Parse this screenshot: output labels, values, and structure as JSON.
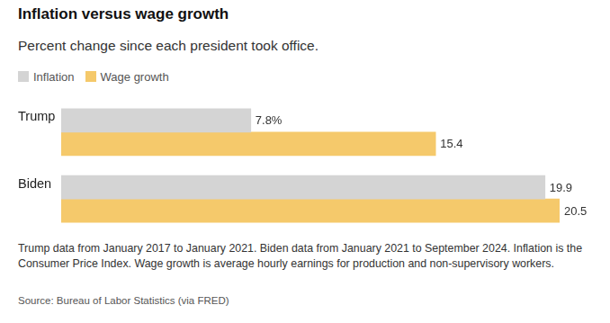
{
  "chart_data": {
    "type": "bar",
    "title": "Inflation versus wage growth",
    "subtitle": "Percent change since each president took office.",
    "categories": [
      "Trump",
      "Biden"
    ],
    "series": [
      {
        "name": "Inflation",
        "color": "#d4d4d4",
        "values": [
          7.8,
          19.9
        ],
        "value_labels": [
          "7.8%",
          "19.9"
        ]
      },
      {
        "name": "Wage growth",
        "color": "#f5c96b",
        "values": [
          15.4,
          20.5
        ],
        "value_labels": [
          "15.4",
          "20.5"
        ]
      }
    ],
    "orientation": "horizontal",
    "xlim": [
      0,
      20.5
    ],
    "grid": false,
    "data_labels": true,
    "tick_labels": "y",
    "legend": "top-left",
    "notes": "Trump data from January 2017 to January 2021. Biden data from January 2021 to September 2024. Inflation is the Consumer Price Index. Wage growth is average hourly earnings for production and non-supervisory workers.",
    "source": "Source: Bureau of Labor Statistics (via FRED)"
  }
}
